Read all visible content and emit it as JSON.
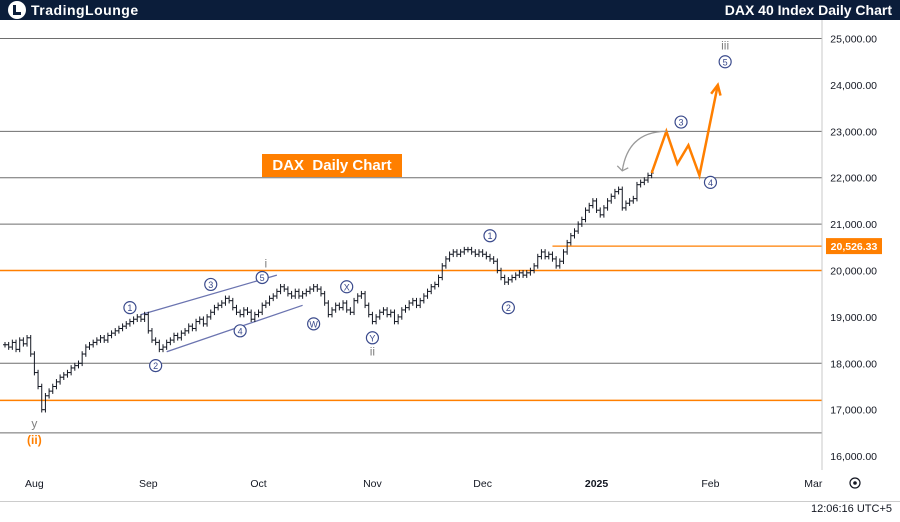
{
  "header": {
    "logo_text": "TradingLounge",
    "chart_title": "DAX 40 Index Daily Chart"
  },
  "annotation": {
    "banner": "DAX  Daily Chart"
  },
  "status": {
    "clock": "12:06:16 UTC+5"
  },
  "colors": {
    "background": "#ffffff",
    "header_bg": "#0b1d3a",
    "orange": "#ff7f00",
    "wave_label": "#3a4a8c",
    "grey_label": "#808080",
    "candle": "#131722",
    "channel": "#6b74b0",
    "gridline": "#6e6e6e"
  },
  "chart_data": {
    "type": "line",
    "title": "DAX 40 Index Daily Chart",
    "ylim": [
      15700,
      25400
    ],
    "xlim": [
      0,
      221
    ],
    "y_ticks": [
      "25,000.00",
      "24,000.00",
      "23,000.00",
      "22,000.00",
      "21,000.00",
      "20,000.00",
      "19,000.00",
      "18,000.00",
      "17,000.00",
      "16,000.00"
    ],
    "y_tick_values": [
      25000,
      24000,
      23000,
      22000,
      21000,
      20000,
      19000,
      18000,
      17000,
      16000
    ],
    "x_ticks": [
      {
        "label": "Aug",
        "x": 8
      },
      {
        "label": "Sep",
        "x": 39
      },
      {
        "label": "Oct",
        "x": 69
      },
      {
        "label": "Nov",
        "x": 100
      },
      {
        "label": "Dec",
        "x": 130
      },
      {
        "label": "2025",
        "x": 161
      },
      {
        "label": "Feb",
        "x": 192
      },
      {
        "label": "Mar",
        "x": 220
      }
    ],
    "horizontal_levels": [
      {
        "value": 25000,
        "color": "#6e6e6e"
      },
      {
        "value": 23000,
        "color": "#6e6e6e"
      },
      {
        "value": 22000,
        "color": "#6e6e6e"
      },
      {
        "value": 21000,
        "color": "#6e6e6e"
      },
      {
        "value": 20000,
        "color": "#ff7f00"
      },
      {
        "value": 18000,
        "color": "#6e6e6e"
      },
      {
        "value": 17200,
        "color": "#ff7f00"
      },
      {
        "value": 16500,
        "color": "#6e6e6e"
      }
    ],
    "price_line": {
      "value": 20526.33,
      "label": "20,526.33",
      "x_start": 149
    },
    "series": [
      {
        "values": [
          [
            0,
            18400
          ],
          [
            1,
            18350
          ],
          [
            2,
            18450
          ],
          [
            3,
            18300
          ],
          [
            4,
            18500
          ],
          [
            5,
            18420
          ],
          [
            6,
            18550
          ],
          [
            7,
            18200
          ],
          [
            8,
            17800
          ],
          [
            9,
            17500
          ],
          [
            10,
            17000
          ],
          [
            11,
            17300
          ],
          [
            12,
            17400
          ],
          [
            13,
            17500
          ],
          [
            14,
            17600
          ],
          [
            15,
            17700
          ],
          [
            16,
            17750
          ],
          [
            17,
            17800
          ],
          [
            18,
            17900
          ],
          [
            19,
            17950
          ],
          [
            20,
            18000
          ],
          [
            21,
            18200
          ],
          [
            22,
            18350
          ],
          [
            23,
            18400
          ],
          [
            24,
            18450
          ],
          [
            25,
            18500
          ],
          [
            26,
            18550
          ],
          [
            27,
            18500
          ],
          [
            28,
            18600
          ],
          [
            29,
            18650
          ],
          [
            30,
            18700
          ],
          [
            31,
            18750
          ],
          [
            32,
            18800
          ],
          [
            33,
            18850
          ],
          [
            34,
            18900
          ],
          [
            35,
            18950
          ],
          [
            36,
            19000
          ],
          [
            37,
            18950
          ],
          [
            38,
            19050
          ],
          [
            39,
            18700
          ],
          [
            40,
            18500
          ],
          [
            41,
            18450
          ],
          [
            42,
            18300
          ],
          [
            43,
            18350
          ],
          [
            44,
            18450
          ],
          [
            45,
            18500
          ],
          [
            46,
            18600
          ],
          [
            47,
            18550
          ],
          [
            48,
            18650
          ],
          [
            49,
            18700
          ],
          [
            50,
            18800
          ],
          [
            51,
            18750
          ],
          [
            52,
            18900
          ],
          [
            53,
            18950
          ],
          [
            54,
            18850
          ],
          [
            55,
            19000
          ],
          [
            56,
            19100
          ],
          [
            57,
            19200
          ],
          [
            58,
            19250
          ],
          [
            59,
            19300
          ],
          [
            60,
            19400
          ],
          [
            61,
            19350
          ],
          [
            62,
            19200
          ],
          [
            63,
            19100
          ],
          [
            64,
            19050
          ],
          [
            65,
            19150
          ],
          [
            66,
            19100
          ],
          [
            67,
            18950
          ],
          [
            68,
            19050
          ],
          [
            69,
            19100
          ],
          [
            70,
            19250
          ],
          [
            71,
            19300
          ],
          [
            72,
            19400
          ],
          [
            73,
            19450
          ],
          [
            74,
            19550
          ],
          [
            75,
            19650
          ],
          [
            76,
            19600
          ],
          [
            77,
            19500
          ],
          [
            78,
            19450
          ],
          [
            79,
            19550
          ],
          [
            80,
            19450
          ],
          [
            81,
            19500
          ],
          [
            82,
            19550
          ],
          [
            83,
            19600
          ],
          [
            84,
            19650
          ],
          [
            85,
            19600
          ],
          [
            86,
            19500
          ],
          [
            87,
            19300
          ],
          [
            88,
            19050
          ],
          [
            89,
            19150
          ],
          [
            90,
            19250
          ],
          [
            91,
            19200
          ],
          [
            92,
            19300
          ],
          [
            93,
            19150
          ],
          [
            94,
            19100
          ],
          [
            95,
            19350
          ],
          [
            96,
            19450
          ],
          [
            97,
            19500
          ],
          [
            98,
            19250
          ],
          [
            99,
            19050
          ],
          [
            100,
            18900
          ],
          [
            101,
            19000
          ],
          [
            102,
            19100
          ],
          [
            103,
            19150
          ],
          [
            104,
            19050
          ],
          [
            105,
            19100
          ],
          [
            106,
            18900
          ],
          [
            107,
            19000
          ],
          [
            108,
            19150
          ],
          [
            109,
            19200
          ],
          [
            110,
            19300
          ],
          [
            111,
            19350
          ],
          [
            112,
            19250
          ],
          [
            113,
            19350
          ],
          [
            114,
            19450
          ],
          [
            115,
            19550
          ],
          [
            116,
            19650
          ],
          [
            117,
            19700
          ],
          [
            118,
            19850
          ],
          [
            119,
            20100
          ],
          [
            120,
            20250
          ],
          [
            121,
            20350
          ],
          [
            122,
            20400
          ],
          [
            123,
            20350
          ],
          [
            124,
            20400
          ],
          [
            125,
            20450
          ],
          [
            126,
            20450
          ],
          [
            127,
            20400
          ],
          [
            128,
            20350
          ],
          [
            129,
            20400
          ],
          [
            130,
            20350
          ],
          [
            131,
            20300
          ],
          [
            132,
            20250
          ],
          [
            133,
            20200
          ],
          [
            134,
            20000
          ],
          [
            135,
            19850
          ],
          [
            136,
            19750
          ],
          [
            137,
            19800
          ],
          [
            138,
            19850
          ],
          [
            139,
            19900
          ],
          [
            140,
            19950
          ],
          [
            141,
            19900
          ],
          [
            142,
            19950
          ],
          [
            143,
            20000
          ],
          [
            144,
            20100
          ],
          [
            145,
            20300
          ],
          [
            146,
            20400
          ],
          [
            147,
            20300
          ],
          [
            148,
            20350
          ],
          [
            149,
            20250
          ],
          [
            150,
            20100
          ],
          [
            151,
            20200
          ],
          [
            152,
            20400
          ],
          [
            153,
            20600
          ],
          [
            154,
            20750
          ],
          [
            155,
            20850
          ],
          [
            156,
            21000
          ],
          [
            157,
            21100
          ],
          [
            158,
            21300
          ],
          [
            159,
            21400
          ],
          [
            160,
            21500
          ],
          [
            161,
            21300
          ],
          [
            162,
            21200
          ],
          [
            163,
            21350
          ],
          [
            164,
            21500
          ],
          [
            165,
            21600
          ],
          [
            166,
            21700
          ],
          [
            167,
            21750
          ],
          [
            168,
            21350
          ],
          [
            169,
            21450
          ],
          [
            170,
            21500
          ],
          [
            171,
            21550
          ],
          [
            172,
            21850
          ],
          [
            173,
            21900
          ],
          [
            174,
            21950
          ],
          [
            175,
            22050
          ],
          [
            176,
            22100
          ]
        ]
      }
    ],
    "projection": [
      [
        176,
        22100
      ],
      [
        180,
        23000
      ],
      [
        183,
        22300
      ],
      [
        186,
        22700
      ],
      [
        189,
        22050
      ],
      [
        194,
        24000
      ]
    ],
    "wave_labels": [
      {
        "text": "1",
        "x": 34,
        "y": 19200,
        "style": "circle"
      },
      {
        "text": "2",
        "x": 41,
        "y": 17950,
        "style": "circle"
      },
      {
        "text": "3",
        "x": 56,
        "y": 19700,
        "style": "circle"
      },
      {
        "text": "4",
        "x": 64,
        "y": 18700,
        "style": "circle"
      },
      {
        "text": "5",
        "x": 70,
        "y": 19850,
        "style": "circle"
      },
      {
        "text": "i",
        "x": 71,
        "y": 20150,
        "style": "plain_grey"
      },
      {
        "text": "W",
        "x": 84,
        "y": 18850,
        "style": "circle"
      },
      {
        "text": "X",
        "x": 93,
        "y": 19650,
        "style": "circle"
      },
      {
        "text": "Y",
        "x": 100,
        "y": 18550,
        "style": "circle"
      },
      {
        "text": "ii",
        "x": 100,
        "y": 18250,
        "style": "plain_grey"
      },
      {
        "text": "1",
        "x": 132,
        "y": 20750,
        "style": "circle"
      },
      {
        "text": "2",
        "x": 137,
        "y": 19200,
        "style": "circle"
      },
      {
        "text": "3",
        "x": 184,
        "y": 23200,
        "style": "circle"
      },
      {
        "text": "4",
        "x": 192,
        "y": 21900,
        "style": "circle"
      },
      {
        "text": "5",
        "x": 196,
        "y": 24500,
        "style": "circle"
      },
      {
        "text": "iii",
        "x": 196,
        "y": 24850,
        "style": "plain_grey"
      },
      {
        "text": "y",
        "x": 8,
        "y": 16700,
        "style": "plain_grey"
      },
      {
        "text": "(ii)",
        "x": 8,
        "y": 16350,
        "style": "orange"
      }
    ],
    "channels": [
      {
        "x1": 37,
        "y1": 19050,
        "x2": 74,
        "y2": 19900
      },
      {
        "x1": 44,
        "y1": 18250,
        "x2": 81,
        "y2": 19250
      }
    ],
    "arrow": {
      "x1": 168,
      "y1": 22150,
      "x2": 180,
      "y2": 23000
    }
  }
}
